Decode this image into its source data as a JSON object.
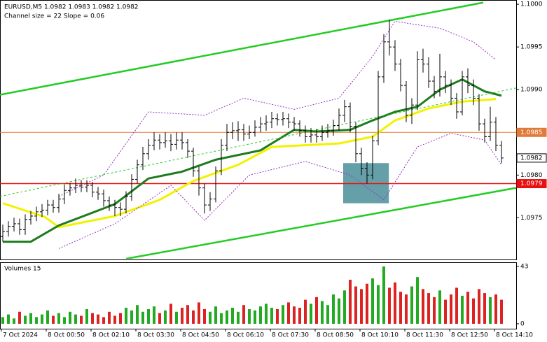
{
  "chart_data": {
    "type": "ohlc",
    "title": "EURUSD,M5  1.0982 1.0983 1.0982 1.0982",
    "subtitle": "Channel size = 22 Slope = 0.06",
    "ylim": [
      1.09702,
      1.10005
    ],
    "yticks": [
      {
        "value": 1.1,
        "label": "1.1000"
      },
      1.0995,
      {
        "value": 1.099,
        "label": "1.0990"
      },
      {
        "value": 1.098,
        "label": "1.0980"
      },
      1.0975
    ],
    "time_labels": [
      "7 Oct 2024",
      "8 Oct 00:50",
      "8 Oct 02:10",
      "8 Oct 03:30",
      "8 Oct 04:50",
      "8 Oct 06:10",
      "8 Oct 07:30",
      "8 Oct 08:50",
      "8 Oct 10:10",
      "8 Oct 11:30",
      "8 Oct 12:50",
      "8 Oct 14:10"
    ],
    "ohlc": [
      [
        1.09728,
        1.09742,
        1.09722,
        1.09734
      ],
      [
        1.09734,
        1.09746,
        1.09728,
        1.0974
      ],
      [
        1.0974,
        1.0975,
        1.09734,
        1.09743
      ],
      [
        1.09743,
        1.09749,
        1.0973,
        1.09736
      ],
      [
        1.09736,
        1.09754,
        1.0973,
        1.09748
      ],
      [
        1.09748,
        1.09758,
        1.09742,
        1.09752
      ],
      [
        1.09752,
        1.09763,
        1.09746,
        1.09757
      ],
      [
        1.09757,
        1.09766,
        1.09751,
        1.09759
      ],
      [
        1.09759,
        1.09771,
        1.09753,
        1.09765
      ],
      [
        1.09765,
        1.09771,
        1.09756,
        1.09762
      ],
      [
        1.09762,
        1.09778,
        1.09756,
        1.09772
      ],
      [
        1.09772,
        1.09789,
        1.09766,
        1.09782
      ],
      [
        1.09782,
        1.09791,
        1.09776,
        1.09785
      ],
      [
        1.09785,
        1.09796,
        1.09779,
        1.09788
      ],
      [
        1.09788,
        1.09794,
        1.0978,
        1.09786
      ],
      [
        1.09786,
        1.09794,
        1.0978,
        1.09788
      ],
      [
        1.09788,
        1.09792,
        1.09774,
        1.0978
      ],
      [
        1.0978,
        1.09786,
        1.09771,
        1.09778
      ],
      [
        1.09778,
        1.09783,
        1.09763,
        1.0977
      ],
      [
        1.0977,
        1.09775,
        1.09758,
        1.09765
      ],
      [
        1.09765,
        1.09771,
        1.09752,
        1.09762
      ],
      [
        1.09762,
        1.09768,
        1.09752,
        1.0976
      ],
      [
        1.0976,
        1.09781,
        1.09755,
        1.09775
      ],
      [
        1.09775,
        1.09801,
        1.0977,
        1.09795
      ],
      [
        1.09795,
        1.09818,
        1.0979,
        1.09812
      ],
      [
        1.09812,
        1.09833,
        1.09806,
        1.09825
      ],
      [
        1.09825,
        1.09842,
        1.09818,
        1.09835
      ],
      [
        1.09835,
        1.0985,
        1.09829,
        1.09841
      ],
      [
        1.09841,
        1.09848,
        1.0983,
        1.09838
      ],
      [
        1.09838,
        1.0985,
        1.09832,
        1.0984
      ],
      [
        1.0984,
        1.09848,
        1.09828,
        1.09836
      ],
      [
        1.09836,
        1.0985,
        1.0983,
        1.09841
      ],
      [
        1.09841,
        1.0985,
        1.0983,
        1.09838
      ],
      [
        1.09838,
        1.09842,
        1.0982,
        1.09828
      ],
      [
        1.09828,
        1.09832,
        1.09798,
        1.09805
      ],
      [
        1.09805,
        1.0981,
        1.09776,
        1.09785
      ],
      [
        1.09785,
        1.0979,
        1.09755,
        1.09765
      ],
      [
        1.09765,
        1.0978,
        1.09758,
        1.09772
      ],
      [
        1.09772,
        1.0981,
        1.09768,
        1.09805
      ],
      [
        1.09805,
        1.09842,
        1.098,
        1.09835
      ],
      [
        1.09835,
        1.0986,
        1.09828,
        1.0985
      ],
      [
        1.0985,
        1.09862,
        1.09842,
        1.09852
      ],
      [
        1.09852,
        1.09863,
        1.0984,
        1.09853
      ],
      [
        1.09853,
        1.0986,
        1.0984,
        1.09848
      ],
      [
        1.09848,
        1.09858,
        1.09842,
        1.0985
      ],
      [
        1.0985,
        1.09864,
        1.09845,
        1.09856
      ],
      [
        1.09856,
        1.09868,
        1.0985,
        1.0986
      ],
      [
        1.0986,
        1.0987,
        1.09852,
        1.09862
      ],
      [
        1.09862,
        1.09874,
        1.09855,
        1.09866
      ],
      [
        1.09866,
        1.09872,
        1.09858,
        1.09865
      ],
      [
        1.09865,
        1.09874,
        1.09858,
        1.09866
      ],
      [
        1.09866,
        1.09872,
        1.09855,
        1.09862
      ],
      [
        1.09862,
        1.09868,
        1.09852,
        1.0986
      ],
      [
        1.0986,
        1.09864,
        1.09845,
        1.09852
      ],
      [
        1.09852,
        1.09858,
        1.09838,
        1.09845
      ],
      [
        1.09845,
        1.09855,
        1.09838,
        1.09847
      ],
      [
        1.09847,
        1.09854,
        1.09838,
        1.09845
      ],
      [
        1.09845,
        1.09858,
        1.0984,
        1.0985
      ],
      [
        1.0985,
        1.0986,
        1.09844,
        1.09852
      ],
      [
        1.09852,
        1.09865,
        1.09846,
        1.09858
      ],
      [
        1.09858,
        1.09878,
        1.09852,
        1.0987
      ],
      [
        1.0987,
        1.09888,
        1.09862,
        1.0988
      ],
      [
        1.0988,
        1.09885,
        1.0985,
        1.09857
      ],
      [
        1.09857,
        1.09862,
        1.09815,
        1.09825
      ],
      [
        1.09825,
        1.09832,
        1.098,
        1.09808
      ],
      [
        1.09808,
        1.09815,
        1.0979,
        1.098
      ],
      [
        1.098,
        1.09846,
        1.09795,
        1.0984
      ],
      [
        1.0984,
        1.09922,
        1.09835,
        1.09915
      ],
      [
        1.09915,
        1.09965,
        1.09908,
        1.09956
      ],
      [
        1.09956,
        1.09982,
        1.0994,
        1.0995
      ],
      [
        1.0995,
        1.09958,
        1.09922,
        1.0993
      ],
      [
        1.0993,
        1.09936,
        1.09898,
        1.09905
      ],
      [
        1.09905,
        1.0991,
        1.09862,
        1.0987
      ],
      [
        1.0987,
        1.0989,
        1.0986,
        1.09882
      ],
      [
        1.09882,
        1.09945,
        1.09876,
        1.09935
      ],
      [
        1.09935,
        1.09948,
        1.0992,
        1.0993
      ],
      [
        1.0993,
        1.09938,
        1.09902,
        1.0991
      ],
      [
        1.0991,
        1.09916,
        1.0989,
        1.09898
      ],
      [
        1.09898,
        1.09942,
        1.09892,
        1.09915
      ],
      [
        1.09915,
        1.09922,
        1.09896,
        1.09905
      ],
      [
        1.09905,
        1.09912,
        1.09882,
        1.0989
      ],
      [
        1.0989,
        1.09896,
        1.09866,
        1.09874
      ],
      [
        1.09874,
        1.09922,
        1.0987,
        1.09915
      ],
      [
        1.09915,
        1.09925,
        1.09896,
        1.09905
      ],
      [
        1.09905,
        1.09912,
        1.09882,
        1.0989
      ],
      [
        1.0989,
        1.09895,
        1.09852,
        1.0986
      ],
      [
        1.0986,
        1.09866,
        1.09838,
        1.09845
      ],
      [
        1.09845,
        1.0988,
        1.0984,
        1.09862
      ],
      [
        1.09862,
        1.09868,
        1.09828,
        1.09835
      ],
      [
        1.09835,
        1.0984,
        1.09814,
        1.0982
      ]
    ],
    "bar_color": "#000000",
    "lines": [
      {
        "color": "#f2f200",
        "width": 3,
        "dash": "",
        "x": [
          0,
          7.5,
          10,
          20,
          28,
          34,
          42,
          48,
          54,
          60,
          66,
          70,
          76,
          82,
          88
        ],
        "values": [
          1.09767,
          1.09751,
          1.09739,
          1.09752,
          1.09771,
          1.09793,
          1.09812,
          1.09833,
          1.09835,
          1.09837,
          1.09845,
          1.09864,
          1.09878,
          1.09886,
          1.09889
        ]
      },
      {
        "color": "#1e7b1e",
        "width": 3,
        "dash": "",
        "x": [
          0,
          5,
          10,
          20,
          26,
          32,
          38,
          46,
          52,
          56,
          62,
          66,
          70,
          74,
          78,
          82,
          86,
          89
        ],
        "values": [
          1.09722,
          1.09722,
          1.09741,
          1.09766,
          1.09796,
          1.09804,
          1.09818,
          1.09829,
          1.09853,
          1.09851,
          1.09853,
          1.09864,
          1.09874,
          1.0988,
          1.099,
          1.09912,
          1.09898,
          1.09893
        ]
      },
      {
        "color": "#9b30c8",
        "width": 1,
        "dash": "2 2",
        "x": [
          10,
          18,
          26,
          36,
          43,
          52,
          60,
          66,
          70,
          78,
          84,
          88
        ],
        "values": [
          1.09775,
          1.098,
          1.09874,
          1.0987,
          1.0989,
          1.09877,
          1.0989,
          1.09939,
          1.0998,
          1.09972,
          1.09956,
          1.09935
        ]
      },
      {
        "color": "#9b30c8",
        "width": 1,
        "dash": "2 2",
        "x": [
          10,
          20,
          30,
          36,
          44,
          54,
          62,
          68,
          74,
          80,
          86,
          89
        ],
        "values": [
          1.09714,
          1.09743,
          1.09788,
          1.09747,
          1.098,
          1.09816,
          1.098,
          1.09771,
          1.09833,
          1.09849,
          1.09841,
          1.09812
        ]
      },
      {
        "color": "#22cc22",
        "width": 2.5,
        "dash": "",
        "x": [
          -0.5,
          85.75
        ],
        "values": [
          1.09894,
          1.10002
        ]
      },
      {
        "color": "#22cc22",
        "width": 2.5,
        "dash": "",
        "x": [
          22,
          91.6
        ],
        "values": [
          1.09702,
          1.09785
        ]
      },
      {
        "color": "#22cc22",
        "width": 1,
        "dash": "3 3",
        "x": [
          -0.5,
          91.6
        ],
        "values": [
          1.09775,
          1.09902
        ]
      }
    ],
    "levels": [
      {
        "value": 1.0985,
        "color": "#e07b39",
        "text_color": "#ffffff"
      },
      {
        "value": 1.0979,
        "color": "#e81010",
        "text_color": "#ffffff"
      },
      {
        "value": 1.0982,
        "color": "#ffffff",
        "text_color": "#000000"
      }
    ],
    "highlight": {
      "x": [
        60.75,
        68.9
      ],
      "y": [
        1.09767,
        1.09814
      ],
      "color": "#4a8f9a"
    },
    "volume_title": "Volumes 15",
    "volumes": [
      5,
      7,
      4,
      9,
      6,
      8,
      5,
      7,
      10,
      6,
      8,
      5,
      9,
      7,
      6,
      11,
      8,
      7,
      5,
      9,
      6,
      8,
      12,
      10,
      14,
      9,
      11,
      13,
      8,
      10,
      15,
      9,
      12,
      14,
      10,
      16,
      11,
      9,
      13,
      8,
      10,
      12,
      9,
      14,
      11,
      10,
      13,
      15,
      12,
      11,
      14,
      16,
      13,
      12,
      18,
      15,
      20,
      17,
      14,
      22,
      19,
      25,
      33,
      28,
      26,
      30,
      34,
      29,
      43,
      27,
      31,
      24,
      22,
      28,
      35,
      26,
      23,
      20,
      25,
      18,
      22,
      27,
      21,
      24,
      19,
      26,
      23,
      20,
      22,
      18
    ],
    "volume_ylim": [
      -3.7,
      46.1
    ],
    "volume_yticks": [
      43,
      0
    ],
    "volume_colors": {
      "up": "#22aa22",
      "down": "#dd2222"
    }
  }
}
